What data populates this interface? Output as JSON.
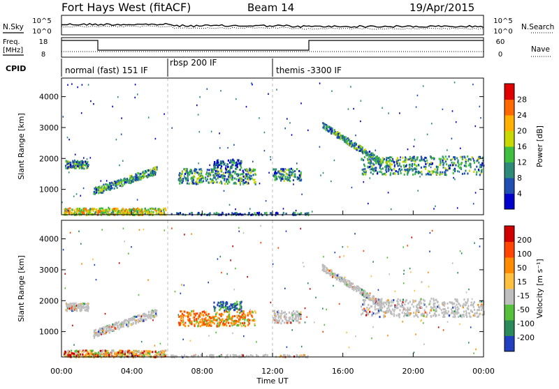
{
  "header": {
    "site": "Fort Hays West (fitACF)",
    "beam": "Beam 14",
    "date": "19/Apr/2015"
  },
  "nsky_panel": {
    "left_label": "N.Sky",
    "right_label": "N.Search",
    "left_ticks": [
      "10^5",
      "10^0"
    ],
    "right_ticks": [
      "10^5",
      "10^0"
    ]
  },
  "freq_panel": {
    "left_label_1": "Freq.",
    "left_label_2": "[MHz]",
    "right_label": "Nave",
    "left_ticks": [
      "18",
      "8"
    ],
    "right_ticks": [
      "60",
      "0"
    ]
  },
  "cpid_panel": {
    "label": "CPID",
    "segments": [
      "normal (fast) 151 IF",
      "rbsp 200 IF",
      "themis -3300 IF"
    ]
  },
  "time_axis": {
    "label": "Time UT",
    "ticks": [
      "00:00",
      "04:00",
      "08:00",
      "12:00",
      "16:00",
      "20:00",
      "00:00"
    ]
  },
  "chart_data": [
    {
      "type": "heatmap",
      "name": "power",
      "ylabel": "Slant Range [km]",
      "x_range_hours": [
        0,
        24
      ],
      "ylim": [
        180,
        4600
      ],
      "y_ticks": [
        "1000",
        "2000",
        "3000",
        "4000"
      ],
      "colorbar": {
        "label": "Power [dB]",
        "ticks": [
          "28",
          "24",
          "20",
          "16",
          "12",
          "8",
          "4"
        ],
        "colors": [
          "#0000cc",
          "#1f4fb0",
          "#2e8b7a",
          "#3fbf3f",
          "#c8d800",
          "#ffb000",
          "#ff6a00",
          "#e00000"
        ]
      }
    },
    {
      "type": "heatmap",
      "name": "velocity",
      "ylabel": "Slant Range [km]",
      "x_range_hours": [
        0,
        24
      ],
      "ylim": [
        180,
        4600
      ],
      "y_ticks": [
        "1000",
        "2000",
        "3000",
        "4000"
      ],
      "colorbar": {
        "label": "Velocity [m s⁻¹]",
        "ticks": [
          "200",
          "100",
          "50",
          "15",
          "-15",
          "-50",
          "-100",
          "-200"
        ],
        "colors": [
          "#2040c0",
          "#2a8a5a",
          "#55c03a",
          "#bebebe",
          "#ffc040",
          "#ff8c00",
          "#ff4500",
          "#d00000"
        ]
      }
    }
  ]
}
